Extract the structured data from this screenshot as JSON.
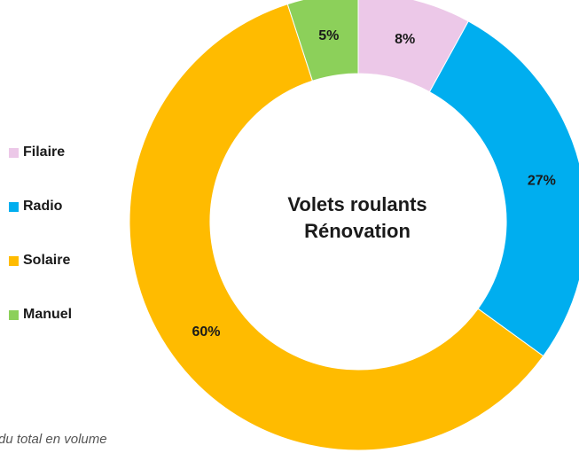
{
  "chart_data": {
    "type": "pie",
    "variant": "donut",
    "center_title": [
      "Volets roulants",
      "Rénovation"
    ],
    "categories": [
      "Filaire",
      "Radio",
      "Solaire",
      "Manuel"
    ],
    "values": [
      8,
      27,
      60,
      5
    ],
    "value_labels": [
      "8%",
      "27%",
      "60%",
      "5%"
    ],
    "colors": [
      "#ecc8e8",
      "#00aeef",
      "#ffbb00",
      "#8cd05a"
    ],
    "legend_position": "left",
    "footnote": "du total en volume"
  }
}
